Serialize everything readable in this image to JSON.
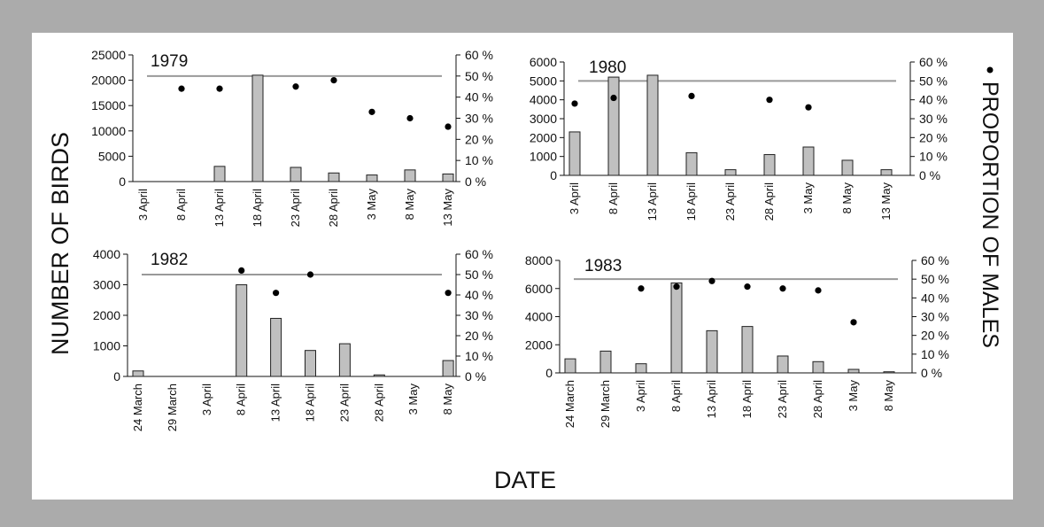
{
  "figure": {
    "y_axis_label": "NUMBER OF BIRDS",
    "x_axis_label": "DATE",
    "right_axis_label": "PROPORTION OF MALES",
    "legend_marker": "dot"
  },
  "colors": {
    "bar_fill": "#c0c0c0",
    "bar_stroke": "#222222",
    "line": "#999999",
    "dot": "#000000",
    "frame": "#ababab"
  },
  "chart_data": [
    {
      "type": "bar",
      "year_label": "1979",
      "categories": [
        "3 April",
        "8 April",
        "13 April",
        "18 April",
        "23 April",
        "28 April",
        "3 May",
        "8 May",
        "13 May"
      ],
      "series": [
        {
          "name": "NUMBER OF BIRDS",
          "axis": "left",
          "type": "bar",
          "values": [
            0,
            0,
            3000,
            21000,
            2800,
            1700,
            1300,
            2300,
            1500
          ]
        },
        {
          "name": "PROPORTION OF MALES",
          "axis": "right",
          "type": "scatter",
          "values": [
            null,
            44,
            44,
            null,
            45,
            48,
            33,
            30,
            26
          ]
        }
      ],
      "reference_line": 50,
      "ylim": [
        0,
        25000
      ],
      "yticks": [
        0,
        5000,
        10000,
        15000,
        20000,
        25000
      ],
      "y2lim": [
        0,
        60
      ],
      "y2ticks": [
        "0 %",
        "10 %",
        "20 %",
        "30 %",
        "40 %",
        "50 %",
        "60 %"
      ]
    },
    {
      "type": "bar",
      "year_label": "1980",
      "categories": [
        "3 April",
        "8 April",
        "13 April",
        "18 April",
        "23 April",
        "28 April",
        "3 May",
        "8 May",
        "13 May"
      ],
      "series": [
        {
          "name": "NUMBER OF BIRDS",
          "axis": "left",
          "type": "bar",
          "values": [
            2300,
            5200,
            5300,
            1200,
            300,
            1100,
            1500,
            800,
            300
          ]
        },
        {
          "name": "PROPORTION OF MALES",
          "axis": "right",
          "type": "scatter",
          "values": [
            38,
            41,
            null,
            42,
            null,
            40,
            36,
            null,
            null
          ]
        }
      ],
      "reference_line": 50,
      "ylim": [
        0,
        6000
      ],
      "yticks": [
        0,
        1000,
        2000,
        3000,
        4000,
        5000,
        6000
      ],
      "y2lim": [
        0,
        60
      ],
      "y2ticks": [
        "0 %",
        "10 %",
        "20 %",
        "30 %",
        "40 %",
        "50 %",
        "60 %"
      ]
    },
    {
      "type": "bar",
      "year_label": "1982",
      "categories": [
        "24 March",
        "29 March",
        "3 April",
        "8 April",
        "13 April",
        "18 April",
        "23 April",
        "28 April",
        "3 May",
        "8 May"
      ],
      "series": [
        {
          "name": "NUMBER OF BIRDS",
          "axis": "left",
          "type": "bar",
          "values": [
            180,
            0,
            0,
            3000,
            1900,
            850,
            1070,
            50,
            0,
            520
          ]
        },
        {
          "name": "PROPORTION OF MALES",
          "axis": "right",
          "type": "scatter",
          "values": [
            null,
            null,
            null,
            52,
            41,
            50,
            null,
            null,
            null,
            41
          ]
        }
      ],
      "reference_line": 50,
      "ylim": [
        0,
        4000
      ],
      "yticks": [
        0,
        1000,
        2000,
        3000,
        4000
      ],
      "y2lim": [
        0,
        60
      ],
      "y2ticks": [
        "0 %",
        "10 %",
        "20 %",
        "30 %",
        "40 %",
        "50 %",
        "60 %"
      ]
    },
    {
      "type": "bar",
      "year_label": "1983",
      "categories": [
        "24 March",
        "29 March",
        "3 April",
        "8 April",
        "13 April",
        "18 April",
        "23 April",
        "28 April",
        "3 May",
        "8 May"
      ],
      "series": [
        {
          "name": "NUMBER OF BIRDS",
          "axis": "left",
          "type": "bar",
          "values": [
            1000,
            1550,
            650,
            6400,
            3000,
            3300,
            1200,
            800,
            250,
            80
          ]
        },
        {
          "name": "PROPORTION OF MALES",
          "axis": "right",
          "type": "scatter",
          "values": [
            null,
            null,
            45,
            46,
            49,
            46,
            45,
            44,
            27,
            null
          ]
        }
      ],
      "reference_line": 50,
      "ylim": [
        0,
        8000
      ],
      "yticks": [
        0,
        2000,
        4000,
        6000,
        8000
      ],
      "y2lim": [
        0,
        60
      ],
      "y2ticks": [
        "0 %",
        "10 %",
        "20 %",
        "30 %",
        "40 %",
        "50 %",
        "60 %"
      ]
    }
  ]
}
